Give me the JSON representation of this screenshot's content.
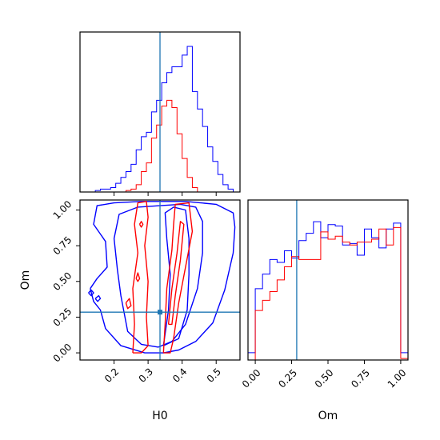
{
  "chart_data": [
    {
      "panel": "H0 marginal",
      "type": "histogram",
      "xlim": [
        0.1,
        0.57
      ],
      "x_ticks": [
        0.2,
        0.3,
        0.4,
        0.5
      ],
      "truth_line": {
        "H0": 0.335,
        "color": "#1f77b4"
      },
      "bin_edges": [
        0.145,
        0.16,
        0.175,
        0.19,
        0.205,
        0.22,
        0.235,
        0.25,
        0.265,
        0.28,
        0.295,
        0.31,
        0.325,
        0.34,
        0.355,
        0.37,
        0.385,
        0.4,
        0.415,
        0.43,
        0.445,
        0.46,
        0.475,
        0.49,
        0.505,
        0.52,
        0.535,
        0.55
      ],
      "series": [
        {
          "color": "#0000ff",
          "values": [
            0.01,
            0.02,
            0.02,
            0.03,
            0.06,
            0.1,
            0.14,
            0.19,
            0.29,
            0.38,
            0.41,
            0.55,
            0.63,
            0.75,
            0.82,
            0.86,
            0.86,
            0.94,
            1.0,
            0.69,
            0.57,
            0.45,
            0.31,
            0.21,
            0.12,
            0.05,
            0.02
          ]
        },
        {
          "color": "#ff0000",
          "values": [
            0,
            0,
            0,
            0,
            0,
            0,
            0.01,
            0.02,
            0.05,
            0.14,
            0.2,
            0.37,
            0.46,
            0.59,
            0.63,
            0.58,
            0.4,
            0.23,
            0.1,
            0.03,
            0,
            0,
            0,
            0,
            0,
            0,
            0
          ]
        }
      ]
    },
    {
      "panel": "H0 vs Om contours",
      "type": "contour",
      "xlabel": "H0",
      "ylabel": "Om",
      "xlim": [
        0.1,
        0.57
      ],
      "ylim": [
        -0.05,
        1.07
      ],
      "x_ticks": [
        "0.2",
        "0.3",
        "0.4",
        "0.5"
      ],
      "y_ticks": [
        "0.00",
        "0.25",
        "0.50",
        "0.75",
        "1.00"
      ],
      "truth_point": {
        "H0": 0.335,
        "Om": 0.285,
        "color": "#1f77b4"
      },
      "series": [
        {
          "color": "#0000ff",
          "contours": [
            [
              [
                0.13,
                0.45
              ],
              [
                0.14,
                0.36
              ],
              [
                0.16,
                0.3
              ],
              [
                0.175,
                0.17
              ],
              [
                0.22,
                0.05
              ],
              [
                0.29,
                0.0
              ],
              [
                0.345,
                0.0
              ],
              [
                0.39,
                0.02
              ],
              [
                0.44,
                0.08
              ],
              [
                0.49,
                0.21
              ],
              [
                0.525,
                0.44
              ],
              [
                0.55,
                0.7
              ],
              [
                0.555,
                0.88
              ],
              [
                0.55,
                0.98
              ],
              [
                0.5,
                1.04
              ],
              [
                0.41,
                1.06
              ],
              [
                0.34,
                1.06
              ],
              [
                0.28,
                1.06
              ],
              [
                0.2,
                1.05
              ],
              [
                0.15,
                1.03
              ],
              [
                0.14,
                0.9
              ],
              [
                0.175,
                0.78
              ],
              [
                0.18,
                0.6
              ],
              [
                0.15,
                0.52
              ],
              [
                0.13,
                0.45
              ]
            ],
            [
              [
                0.22,
                0.4
              ],
              [
                0.24,
                0.15
              ],
              [
                0.28,
                0.06
              ],
              [
                0.33,
                0.04
              ],
              [
                0.37,
                0.08
              ],
              [
                0.41,
                0.2
              ],
              [
                0.445,
                0.45
              ],
              [
                0.46,
                0.7
              ],
              [
                0.46,
                0.92
              ],
              [
                0.44,
                1.02
              ],
              [
                0.395,
                1.04
              ],
              [
                0.335,
                1.03
              ],
              [
                0.27,
                1.02
              ],
              [
                0.215,
                0.97
              ],
              [
                0.2,
                0.8
              ],
              [
                0.21,
                0.58
              ],
              [
                0.22,
                0.4
              ]
            ],
            [
              [
                0.345,
                0.05
              ],
              [
                0.36,
                0.3
              ],
              [
                0.365,
                0.55
              ],
              [
                0.355,
                0.8
              ],
              [
                0.35,
                0.98
              ],
              [
                0.375,
                1.02
              ],
              [
                0.41,
                1.0
              ],
              [
                0.42,
                0.8
              ],
              [
                0.42,
                0.55
              ],
              [
                0.415,
                0.3
              ],
              [
                0.39,
                0.1
              ],
              [
                0.345,
                0.05
              ]
            ],
            [
              [
                0.125,
                0.42
              ],
              [
                0.133,
                0.44
              ],
              [
                0.14,
                0.42
              ],
              [
                0.133,
                0.4
              ],
              [
                0.125,
                0.42
              ]
            ],
            [
              [
                0.145,
                0.38
              ],
              [
                0.155,
                0.4
              ],
              [
                0.16,
                0.38
              ],
              [
                0.152,
                0.36
              ],
              [
                0.145,
                0.38
              ]
            ]
          ]
        },
        {
          "color": "#ff0000",
          "contours": [
            [
              [
                0.255,
                0.0
              ],
              [
                0.26,
                0.2
              ],
              [
                0.255,
                0.45
              ],
              [
                0.27,
                0.7
              ],
              [
                0.26,
                0.9
              ],
              [
                0.27,
                1.05
              ],
              [
                0.295,
                1.06
              ],
              [
                0.3,
                0.95
              ],
              [
                0.29,
                0.75
              ],
              [
                0.3,
                0.5
              ],
              [
                0.295,
                0.25
              ],
              [
                0.3,
                0.05
              ],
              [
                0.28,
                0.0
              ],
              [
                0.255,
                0.0
              ]
            ],
            [
              [
                0.345,
                0.0
              ],
              [
                0.35,
                0.2
              ],
              [
                0.355,
                0.45
              ],
              [
                0.37,
                0.72
              ],
              [
                0.375,
                0.9
              ],
              [
                0.38,
                1.04
              ],
              [
                0.42,
                1.05
              ],
              [
                0.43,
                0.85
              ],
              [
                0.41,
                0.6
              ],
              [
                0.39,
                0.35
              ],
              [
                0.375,
                0.1
              ],
              [
                0.365,
                0.0
              ],
              [
                0.345,
                0.0
              ]
            ],
            [
              [
                0.36,
                0.2
              ],
              [
                0.37,
                0.45
              ],
              [
                0.385,
                0.7
              ],
              [
                0.395,
                0.92
              ],
              [
                0.405,
                0.9
              ],
              [
                0.395,
                0.65
              ],
              [
                0.38,
                0.4
              ],
              [
                0.37,
                0.2
              ],
              [
                0.36,
                0.2
              ]
            ],
            [
              [
                0.235,
                0.35
              ],
              [
                0.245,
                0.38
              ],
              [
                0.25,
                0.33
              ],
              [
                0.24,
                0.31
              ],
              [
                0.235,
                0.35
              ]
            ],
            [
              [
                0.265,
                0.52
              ],
              [
                0.27,
                0.56
              ],
              [
                0.275,
                0.52
              ],
              [
                0.27,
                0.5
              ],
              [
                0.265,
                0.52
              ]
            ],
            [
              [
                0.275,
                0.9
              ],
              [
                0.28,
                0.92
              ],
              [
                0.285,
                0.9
              ],
              [
                0.28,
                0.88
              ],
              [
                0.275,
                0.9
              ]
            ]
          ]
        }
      ]
    },
    {
      "panel": "Om marginal",
      "type": "histogram",
      "xlabel": "Om",
      "xlim": [
        -0.05,
        1.05
      ],
      "x_ticks": [
        "0.00",
        "0.25",
        "0.50",
        "0.75",
        "1.00"
      ],
      "truth_line": {
        "Om": 0.285,
        "color": "#1f77b4"
      },
      "bin_edges": [
        -0.05,
        0.0,
        0.05,
        0.1,
        0.15,
        0.2,
        0.25,
        0.3,
        0.35,
        0.4,
        0.45,
        0.5,
        0.55,
        0.6,
        0.65,
        0.7,
        0.75,
        0.8,
        0.85,
        0.9,
        0.95,
        1.0,
        1.05
      ],
      "series": [
        {
          "color": "#0000ff",
          "values": [
            0.05,
            0.49,
            0.59,
            0.69,
            0.67,
            0.75,
            0.7,
            0.82,
            0.87,
            0.95,
            0.84,
            0.93,
            0.92,
            0.79,
            0.8,
            0.72,
            0.9,
            0.84,
            0.77,
            0.9,
            0.94,
            0.05
          ]
        },
        {
          "color": "#ff0000",
          "values": [
            0,
            0.34,
            0.41,
            0.47,
            0.55,
            0.64,
            0.71,
            0.69,
            0.69,
            0.69,
            0.88,
            0.83,
            0.85,
            0.81,
            0.79,
            0.81,
            0.81,
            0.83,
            0.9,
            0.79,
            0.91,
            0.01
          ]
        }
      ]
    }
  ]
}
